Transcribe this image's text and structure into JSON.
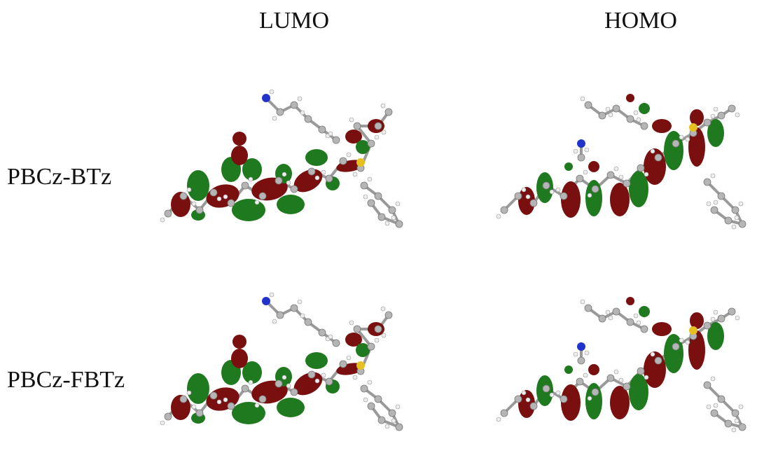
{
  "columns": [
    "LUMO",
    "HOMO"
  ],
  "rows": [
    "PBCz-BTz",
    "PBCz-FBTz"
  ]
}
